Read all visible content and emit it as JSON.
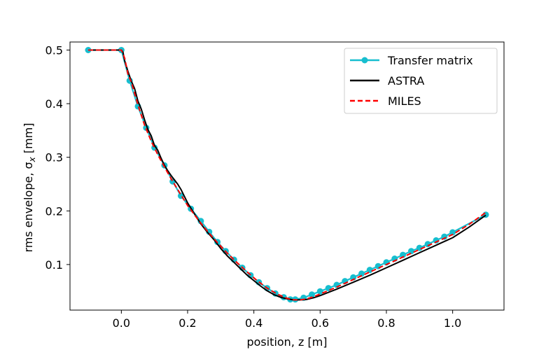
{
  "chart_data": {
    "type": "line",
    "title": "",
    "xlabel": "position, z [m]",
    "ylabel_main": "rms envelope, σ",
    "ylabel_sub": "x",
    "ylabel_unit": " [mm]",
    "xlim": [
      -0.155,
      1.155
    ],
    "ylim": [
      0.015,
      0.515
    ],
    "xticks": [
      0.0,
      0.2,
      0.4,
      0.6,
      0.8,
      1.0
    ],
    "xtick_labels": [
      "0.0",
      "0.2",
      "0.4",
      "0.6",
      "0.8",
      "1.0"
    ],
    "yticks": [
      0.1,
      0.2,
      0.3,
      0.4,
      0.5
    ],
    "ytick_labels": [
      "0.1",
      "0.2",
      "0.3",
      "0.4",
      "0.5"
    ],
    "grid": false,
    "legend_position": "top-right",
    "series": [
      {
        "name": "Transfer matrix",
        "color": "#17becf",
        "style": "solid-markers",
        "x": [
          -0.1,
          0.0,
          0.025,
          0.05,
          0.075,
          0.1,
          0.13,
          0.155,
          0.18,
          0.21,
          0.24,
          0.265,
          0.29,
          0.315,
          0.34,
          0.365,
          0.39,
          0.415,
          0.44,
          0.465,
          0.49,
          0.51,
          0.525,
          0.55,
          0.575,
          0.6,
          0.625,
          0.65,
          0.675,
          0.7,
          0.725,
          0.75,
          0.775,
          0.8,
          0.825,
          0.85,
          0.875,
          0.9,
          0.925,
          0.95,
          0.975,
          1.0,
          1.1
        ],
        "y": [
          0.5,
          0.5,
          0.443,
          0.395,
          0.355,
          0.318,
          0.285,
          0.255,
          0.228,
          0.204,
          0.181,
          0.161,
          0.142,
          0.125,
          0.109,
          0.094,
          0.08,
          0.067,
          0.056,
          0.046,
          0.039,
          0.035,
          0.035,
          0.038,
          0.044,
          0.05,
          0.056,
          0.062,
          0.069,
          0.076,
          0.083,
          0.09,
          0.097,
          0.104,
          0.111,
          0.118,
          0.125,
          0.131,
          0.138,
          0.145,
          0.152,
          0.16,
          0.193
        ]
      },
      {
        "name": "ASTRA",
        "color": "#000000",
        "style": "solid",
        "x": [
          -0.1,
          0.0,
          0.005,
          0.01,
          0.02,
          0.03,
          0.04,
          0.05,
          0.06,
          0.07,
          0.08,
          0.09,
          0.1,
          0.11,
          0.12,
          0.13,
          0.14,
          0.15,
          0.16,
          0.17,
          0.18,
          0.2,
          0.22,
          0.24,
          0.26,
          0.28,
          0.3,
          0.32,
          0.34,
          0.36,
          0.38,
          0.4,
          0.42,
          0.44,
          0.46,
          0.48,
          0.5,
          0.52,
          0.54,
          0.56,
          0.58,
          0.6,
          0.65,
          0.7,
          0.75,
          0.8,
          0.85,
          0.9,
          0.95,
          1.0,
          1.05,
          1.1
        ],
        "y": [
          0.5,
          0.5,
          0.496,
          0.48,
          0.46,
          0.442,
          0.428,
          0.405,
          0.39,
          0.37,
          0.352,
          0.34,
          0.322,
          0.313,
          0.298,
          0.285,
          0.275,
          0.266,
          0.258,
          0.25,
          0.24,
          0.215,
          0.195,
          0.176,
          0.16,
          0.146,
          0.13,
          0.116,
          0.104,
          0.092,
          0.08,
          0.07,
          0.06,
          0.051,
          0.044,
          0.039,
          0.036,
          0.034,
          0.034,
          0.035,
          0.038,
          0.042,
          0.054,
          0.067,
          0.08,
          0.094,
          0.108,
          0.122,
          0.136,
          0.15,
          0.17,
          0.192
        ]
      },
      {
        "name": "MILES",
        "color": "#ff0000",
        "style": "dashed",
        "x": [
          -0.1,
          0.0,
          0.01,
          0.02,
          0.03,
          0.05,
          0.07,
          0.09,
          0.11,
          0.13,
          0.15,
          0.17,
          0.2,
          0.23,
          0.26,
          0.29,
          0.32,
          0.35,
          0.38,
          0.41,
          0.44,
          0.47,
          0.5,
          0.52,
          0.54,
          0.56,
          0.58,
          0.6,
          0.65,
          0.7,
          0.75,
          0.8,
          0.85,
          0.9,
          0.95,
          1.0,
          1.05,
          1.1
        ],
        "y": [
          0.5,
          0.5,
          0.485,
          0.455,
          0.44,
          0.398,
          0.36,
          0.33,
          0.305,
          0.282,
          0.26,
          0.24,
          0.21,
          0.185,
          0.162,
          0.141,
          0.121,
          0.103,
          0.086,
          0.07,
          0.056,
          0.045,
          0.037,
          0.034,
          0.034,
          0.036,
          0.04,
          0.045,
          0.058,
          0.072,
          0.086,
          0.1,
          0.114,
          0.128,
          0.142,
          0.156,
          0.175,
          0.197
        ]
      }
    ]
  }
}
